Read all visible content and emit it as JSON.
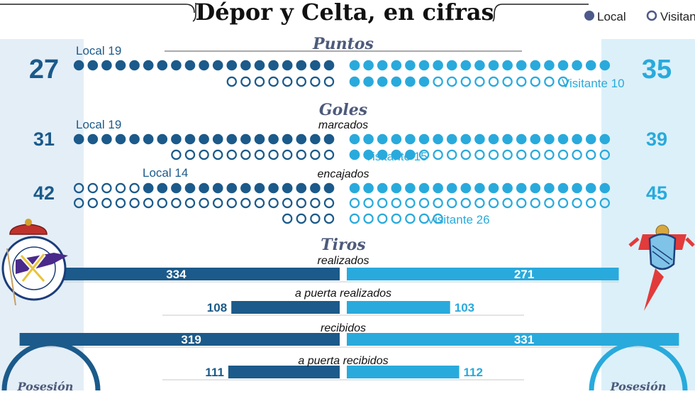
{
  "title": "Dépor y Celta, en cifras",
  "legend": {
    "local": "Local",
    "visitante": "Visitante"
  },
  "colors": {
    "local": "#1b5a8a",
    "visitante": "#29aadc",
    "section": "#4d5a7a",
    "text": "#222222",
    "panel_left": "#e4eef7",
    "panel_right": "#dcf0f9"
  },
  "chart_data": {
    "type": "table",
    "units_note": "",
    "dots": [
      {
        "section": "Puntos",
        "subtitle": "",
        "local": {
          "total": 27,
          "home": 19
        },
        "visitante": {
          "total": 35,
          "away": 10
        },
        "local_label": "Local 19",
        "visitante_label": "Visitante 10"
      },
      {
        "section": "Goles",
        "subtitle": "marcados",
        "local": {
          "total": 31,
          "home": 19
        },
        "visitante": {
          "total": 39,
          "away": 15
        },
        "local_label": "Local 19",
        "visitante_label": "Visitante 15"
      },
      {
        "section": "",
        "subtitle": "encajados",
        "local": {
          "total": 42,
          "home": 14
        },
        "visitante": {
          "total": 45,
          "away": 26
        },
        "local_label": "Local 14",
        "visitante_label": "Visitante 26"
      }
    ],
    "bars_section": "Tiros",
    "bars": [
      {
        "label": "realizados",
        "local": 334,
        "visitante": 271
      },
      {
        "label": "a puerta realizados",
        "local": 108,
        "visitante": 103
      },
      {
        "label": "recibidos",
        "local": 319,
        "visitante": 331
      },
      {
        "label": "a puerta recibidos",
        "local": 111,
        "visitante": 112
      }
    ],
    "posesion_label": "Posesión"
  }
}
